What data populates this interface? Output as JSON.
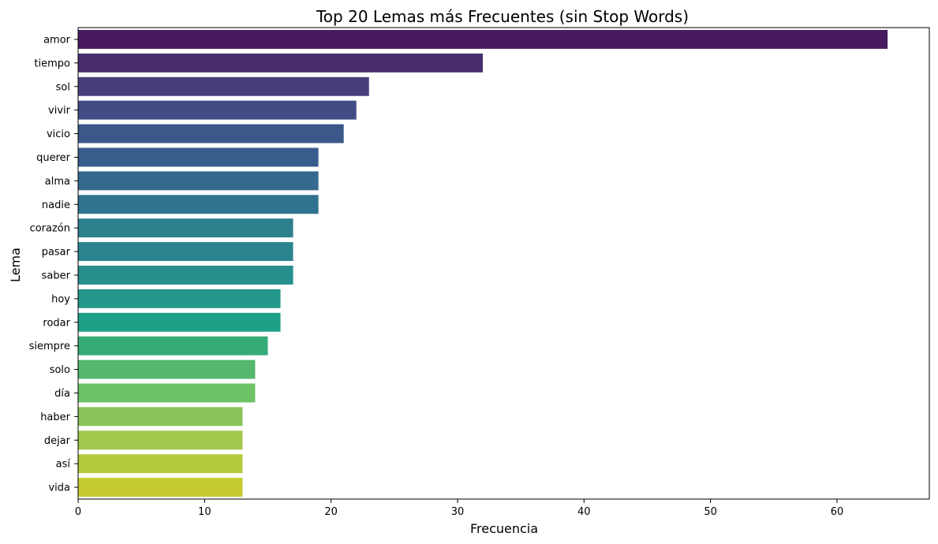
{
  "chart_data": {
    "type": "bar",
    "orientation": "horizontal",
    "title": "Top 20 Lemas más Frecuentes (sin Stop Words)",
    "xlabel": "Frecuencia",
    "ylabel": "Lema",
    "xlim": [
      0,
      67.3
    ],
    "xticks": [
      0,
      10,
      20,
      30,
      40,
      50,
      60
    ],
    "grid": false,
    "legend": "none",
    "palette": "viridis",
    "categories": [
      "amor",
      "tiempo",
      "sol",
      "vivir",
      "vicio",
      "querer",
      "alma",
      "nadie",
      "corazón",
      "pasar",
      "saber",
      "hoy",
      "rodar",
      "siempre",
      "solo",
      "día",
      "haber",
      "dejar",
      "así",
      "vida"
    ],
    "values": [
      64,
      32,
      23,
      22,
      21,
      19,
      19,
      19,
      17,
      17,
      17,
      16,
      16,
      15,
      14,
      14,
      13,
      13,
      13,
      13
    ],
    "colors": [
      "#481b5e",
      "#482e6f",
      "#463e7c",
      "#424b84",
      "#3c588a",
      "#375d8c",
      "#336a8d",
      "#30738e",
      "#2d7f8e",
      "#2a848e",
      "#278f8c",
      "#22978a",
      "#1f9f86",
      "#35ab78",
      "#55b66e",
      "#6ec266",
      "#88c45a",
      "#a1c84c",
      "#b6ca3e",
      "#c6cb30"
    ]
  }
}
